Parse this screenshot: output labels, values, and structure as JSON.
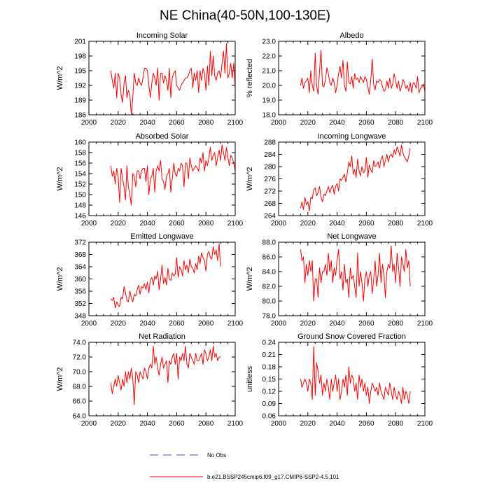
{
  "figure": {
    "title": "NE China(40-50N,100-130E)"
  },
  "colors": {
    "model_line": "#ff0000",
    "obs_line": "#4a4ad0",
    "axis": "#000000"
  },
  "legend": {
    "obs_label": "No Obs",
    "model_label": "b.e21.BSSP245cmip6.f09_g17.CMIP6-SSP2-4.5.101"
  },
  "chart_data": [
    {
      "type": "line",
      "title": "Incoming Solar",
      "ylabel": "W/m^2",
      "xlim": [
        2000,
        2100
      ],
      "ylim": [
        186,
        201
      ],
      "xticks": [
        2000,
        2020,
        2040,
        2060,
        2080,
        2100
      ],
      "xtick_labels": [
        "2000",
        "2020",
        "2040",
        "2060",
        "2080",
        "2100"
      ],
      "yticks": [
        186,
        189,
        192,
        195,
        198,
        201
      ],
      "ytick_labels": [
        "186",
        "189",
        "192",
        "195",
        "198",
        "201"
      ],
      "series": [
        {
          "name": "b.e21.BSSP245cmip6.f09_g17.CMIP6-SSP2-4.5.101",
          "x_start": 2015,
          "values": [
            195.0,
            193.0,
            191.5,
            194.5,
            189.5,
            194.5,
            193.5,
            190.0,
            188.5,
            192.5,
            194.0,
            189.5,
            191.0,
            190.0,
            186.0,
            189.5,
            194.5,
            192.5,
            192.0,
            193.5,
            192.5,
            192.0,
            193.5,
            195.5,
            195.5,
            195.0,
            192.0,
            189.5,
            192.5,
            194.5,
            193.5,
            192.0,
            195.5,
            189.0,
            194.5,
            194.5,
            192.5,
            194.0,
            193.0,
            191.0,
            195.5,
            189.5,
            193.5,
            194.5,
            195.0,
            192.0,
            191.5,
            191.0,
            192.0,
            192.5,
            193.0,
            193.5,
            193.5,
            194.0,
            195.0,
            195.5,
            191.5,
            194.5,
            193.0,
            195.0,
            190.5,
            195.0,
            193.0,
            195.5,
            194.5,
            191.0,
            196.0,
            192.0,
            199.0,
            194.0,
            198.0,
            194.0,
            193.0,
            194.5,
            195.0,
            193.5,
            196.5,
            199.0,
            194.5,
            200.5,
            193.5,
            194.5,
            196.5,
            193.5,
            196.5,
            191.5
          ]
        }
      ]
    },
    {
      "type": "line",
      "title": "Albedo",
      "ylabel": "% reflected",
      "xlim": [
        2000,
        2100
      ],
      "ylim": [
        18,
        23
      ],
      "xticks": [
        2000,
        2020,
        2040,
        2060,
        2080,
        2100
      ],
      "xtick_labels": [
        "2000",
        "2020",
        "2040",
        "2060",
        "2080",
        "2100"
      ],
      "yticks": [
        18,
        19,
        20,
        21,
        22,
        23
      ],
      "ytick_labels": [
        "18.0",
        "19.0",
        "20.0",
        "21.0",
        "22.0",
        "23.0"
      ],
      "series": [
        {
          "name": "b.e21.BSSP245cmip6.f09_g17.CMIP6-SSP2-4.5.101",
          "x_start": 2015,
          "values": [
            20.0,
            20.5,
            19.8,
            20.2,
            20.3,
            20.5,
            19.5,
            21.0,
            20.0,
            19.6,
            22.2,
            20.0,
            19.4,
            21.0,
            22.4,
            20.0,
            19.9,
            20.4,
            21.2,
            20.8,
            20.2,
            20.0,
            20.5,
            20.2,
            19.5,
            20.0,
            20.8,
            21.3,
            20.5,
            21.7,
            20.0,
            19.6,
            21.6,
            20.2,
            20.1,
            20.6,
            19.8,
            20.8,
            20.4,
            20.5,
            20.2,
            20.6,
            20.4,
            20.2,
            20.6,
            20.4,
            19.9,
            19.4,
            20.4,
            21.8,
            20.0,
            19.7,
            20.3,
            20.2,
            20.4,
            20.3,
            19.9,
            19.6,
            19.7,
            20.3,
            19.8,
            20.5,
            19.8,
            20.1,
            20.8,
            20.3,
            19.8,
            20.3,
            19.6,
            19.9,
            20.4,
            20.2,
            19.8,
            20.0,
            19.6,
            20.2,
            19.5,
            20.2,
            20.1,
            19.8,
            20.6,
            19.5,
            19.8,
            19.9,
            20.1,
            19.6
          ]
        }
      ]
    },
    {
      "type": "line",
      "title": "Absorbed Solar",
      "ylabel": "W/m^2",
      "xlim": [
        2000,
        2100
      ],
      "ylim": [
        146,
        160
      ],
      "xticks": [
        2000,
        2020,
        2040,
        2060,
        2080,
        2100
      ],
      "xtick_labels": [
        "2000",
        "2020",
        "2040",
        "2060",
        "2080",
        "2100"
      ],
      "yticks": [
        146,
        148,
        150,
        152,
        154,
        156,
        158,
        160
      ],
      "ytick_labels": [
        "146",
        "148",
        "150",
        "152",
        "154",
        "156",
        "158",
        "160"
      ],
      "series": [
        {
          "name": "b.e21.BSSP245cmip6.f09_g17.CMIP6-SSP2-4.5.101",
          "x_start": 2015,
          "values": [
            155.5,
            153.5,
            154.5,
            152.0,
            155.0,
            153.5,
            148.5,
            155.0,
            153.0,
            151.5,
            149.0,
            155.5,
            151.5,
            150.0,
            148.0,
            154.0,
            153.5,
            151.5,
            154.5,
            154.5,
            153.0,
            154.5,
            155.0,
            155.0,
            152.5,
            155.5,
            150.0,
            153.0,
            153.5,
            155.0,
            150.5,
            154.5,
            155.5,
            154.5,
            156.5,
            153.0,
            152.5,
            151.0,
            153.5,
            154.0,
            155.0,
            150.5,
            153.0,
            156.0,
            154.0,
            153.5,
            155.0,
            154.5,
            156.0,
            155.5,
            151.5,
            156.0,
            156.0,
            153.0,
            157.0,
            155.5,
            154.5,
            155.0,
            155.5,
            155.0,
            154.5,
            157.0,
            156.0,
            158.0,
            154.5,
            156.5,
            155.5,
            157.0,
            159.0,
            156.5,
            157.5,
            158.0,
            155.5,
            157.0,
            158.5,
            156.5,
            159.5,
            158.0,
            156.5,
            159.0,
            157.0,
            155.5,
            157.5,
            157.0,
            156.0,
            154.5
          ]
        }
      ]
    },
    {
      "type": "line",
      "title": "Incoming Longwave",
      "ylabel": "W/m^2",
      "xlim": [
        2000,
        2100
      ],
      "ylim": [
        264,
        288
      ],
      "xticks": [
        2000,
        2020,
        2040,
        2060,
        2080,
        2100
      ],
      "xtick_labels": [
        "2000",
        "2020",
        "2040",
        "2060",
        "2080",
        "2100"
      ],
      "yticks": [
        264,
        268,
        272,
        276,
        280,
        284,
        288
      ],
      "ytick_labels": [
        "264",
        "268",
        "272",
        "276",
        "280",
        "284",
        "288"
      ],
      "series": [
        {
          "name": "b.e21.BSSP245cmip6.f09_g17.CMIP6-SSP2-4.5.101",
          "x_start": 2015,
          "values": [
            266.5,
            268.5,
            266.0,
            270.0,
            267.5,
            268.5,
            265.5,
            270.0,
            269.5,
            272.5,
            273.0,
            270.5,
            271.5,
            273.5,
            270.0,
            268.5,
            271.0,
            270.5,
            272.0,
            273.5,
            271.5,
            273.0,
            274.0,
            271.0,
            273.5,
            274.5,
            272.0,
            276.0,
            275.5,
            276.5,
            277.5,
            275.0,
            278.0,
            281.5,
            280.0,
            283.5,
            277.5,
            279.0,
            276.5,
            282.5,
            278.5,
            277.0,
            280.0,
            278.0,
            278.5,
            283.0,
            276.5,
            280.5,
            279.0,
            278.0,
            282.0,
            280.0,
            280.5,
            281.5,
            279.5,
            282.5,
            283.5,
            280.0,
            282.0,
            284.0,
            281.5,
            283.5,
            284.0,
            283.0,
            285.5,
            284.0,
            286.5,
            285.0,
            283.5,
            287.0,
            284.5,
            283.0,
            282.5,
            281.5,
            283.5,
            286.0
          ]
        }
      ]
    },
    {
      "type": "line",
      "title": "Emitted Longwave",
      "ylabel": "W/m^2",
      "xlim": [
        2000,
        2100
      ],
      "ylim": [
        348,
        372
      ],
      "xticks": [
        2000,
        2020,
        2040,
        2060,
        2080,
        2100
      ],
      "xtick_labels": [
        "2000",
        "2020",
        "2040",
        "2060",
        "2080",
        "2100"
      ],
      "yticks": [
        348,
        352,
        356,
        360,
        364,
        368,
        372
      ],
      "ytick_labels": [
        "348",
        "352",
        "356",
        "360",
        "364",
        "368",
        "372"
      ],
      "series": [
        {
          "name": "b.e21.BSSP245cmip6.f09_g17.CMIP6-SSP2-4.5.101",
          "x_start": 2015,
          "values": [
            353.5,
            353.0,
            354.0,
            350.5,
            352.5,
            351.5,
            351.0,
            354.0,
            353.5,
            357.5,
            355.5,
            353.0,
            352.5,
            356.0,
            354.0,
            352.5,
            355.0,
            354.5,
            356.5,
            358.0,
            355.0,
            357.5,
            357.0,
            358.5,
            356.5,
            359.0,
            355.5,
            359.5,
            360.5,
            358.0,
            361.0,
            360.0,
            362.5,
            356.5,
            360.0,
            364.5,
            358.5,
            360.5,
            358.0,
            363.5,
            360.0,
            359.5,
            362.0,
            361.0,
            361.5,
            367.0,
            360.5,
            364.0,
            363.0,
            361.0,
            366.0,
            363.0,
            364.5,
            362.0,
            366.5,
            364.0,
            363.5,
            362.0,
            365.0,
            363.0,
            367.5,
            365.0,
            368.5,
            367.0,
            366.0,
            362.5,
            368.0,
            369.0,
            367.0,
            366.5,
            370.5,
            368.0,
            369.5,
            366.0,
            371.5,
            364.0
          ]
        }
      ]
    },
    {
      "type": "line",
      "title": "Net Longwave",
      "ylabel": "W/m^2",
      "xlim": [
        2000,
        2100
      ],
      "ylim": [
        78,
        88
      ],
      "xticks": [
        2000,
        2020,
        2040,
        2060,
        2080,
        2100
      ],
      "xtick_labels": [
        "2000",
        "2020",
        "2040",
        "2060",
        "2080",
        "2100"
      ],
      "yticks": [
        78,
        80,
        82,
        84,
        86,
        88
      ],
      "ytick_labels": [
        "78.0",
        "80.0",
        "82.0",
        "84.0",
        "86.0",
        "88.0"
      ],
      "series": [
        {
          "name": "b.e21.BSSP245cmip6.f09_g17.CMIP6-SSP2-4.5.101",
          "x_start": 2015,
          "values": [
            87.0,
            85.5,
            86.0,
            82.5,
            85.0,
            83.5,
            85.5,
            84.0,
            85.5,
            80.0,
            83.0,
            83.0,
            80.5,
            84.5,
            82.5,
            84.0,
            84.0,
            85.0,
            83.5,
            86.5,
            84.0,
            85.5,
            82.5,
            84.5,
            83.5,
            85.5,
            87.0,
            83.0,
            84.0,
            81.5,
            85.0,
            82.5,
            83.0,
            80.5,
            84.5,
            83.0,
            83.5,
            82.0,
            80.5,
            86.5,
            82.0,
            84.0,
            82.5,
            80.0,
            83.0,
            84.0,
            82.0,
            83.5,
            84.0,
            81.0,
            83.0,
            85.5,
            82.0,
            83.5,
            86.5,
            82.5,
            85.0,
            83.5,
            80.5,
            84.0,
            85.0,
            84.5,
            87.5,
            84.0,
            85.0,
            82.5,
            86.5,
            84.5,
            82.0,
            86.0,
            85.0,
            84.0,
            87.0,
            84.5,
            85.5,
            82.0
          ]
        }
      ]
    },
    {
      "type": "line",
      "title": "Net Radiation",
      "ylabel": "W/m^2",
      "xlim": [
        2000,
        2100
      ],
      "ylim": [
        64,
        74
      ],
      "xticks": [
        2000,
        2020,
        2040,
        2060,
        2080,
        2100
      ],
      "xtick_labels": [
        "2000",
        "2020",
        "2040",
        "2060",
        "2080",
        "2100"
      ],
      "yticks": [
        64,
        66,
        68,
        70,
        72,
        74
      ],
      "ytick_labels": [
        "64.0",
        "66.0",
        "68.0",
        "70.0",
        "72.0",
        "74.0"
      ],
      "series": [
        {
          "name": "b.e21.BSSP245cmip6.f09_g17.CMIP6-SSP2-4.5.101",
          "x_start": 2015,
          "values": [
            68.5,
            67.0,
            68.0,
            69.0,
            68.0,
            69.5,
            68.5,
            67.5,
            69.0,
            68.0,
            70.0,
            68.5,
            70.0,
            69.0,
            70.5,
            69.0,
            65.5,
            70.0,
            69.5,
            68.5,
            70.0,
            69.5,
            69.0,
            70.5,
            70.0,
            69.0,
            70.5,
            71.0,
            70.5,
            73.5,
            71.0,
            72.0,
            70.5,
            69.5,
            71.0,
            72.0,
            70.5,
            71.0,
            71.5,
            68.5,
            71.5,
            71.0,
            72.0,
            72.5,
            71.0,
            72.5,
            69.0,
            72.0,
            71.5,
            72.5,
            71.5,
            73.5,
            71.0,
            70.5,
            72.5,
            72.0,
            71.5,
            71.0,
            72.5,
            71.5,
            71.5,
            72.0,
            72.5,
            71.0,
            73.0,
            72.5,
            71.5,
            72.0,
            73.0,
            71.5,
            73.5,
            72.0,
            72.5,
            71.5,
            72.0,
            72.0
          ]
        }
      ]
    },
    {
      "type": "line",
      "title": "Ground Snow Covered Fraction",
      "ylabel": "unitless",
      "xlim": [
        2000,
        2100
      ],
      "ylim": [
        0.06,
        0.24
      ],
      "xticks": [
        2000,
        2020,
        2040,
        2060,
        2080,
        2100
      ],
      "xtick_labels": [
        "2000",
        "2020",
        "2040",
        "2060",
        "2080",
        "2100"
      ],
      "yticks": [
        0.06,
        0.09,
        0.12,
        0.15,
        0.18,
        0.21,
        0.24
      ],
      "ytick_labels": [
        "0.06",
        "0.09",
        "0.12",
        "0.15",
        "0.18",
        "0.21",
        "0.24"
      ],
      "series": [
        {
          "name": "b.e21.BSSP245cmip6.f09_g17.CMIP6-SSP2-4.5.101",
          "x_start": 2015,
          "values": [
            0.15,
            0.13,
            0.14,
            0.15,
            0.14,
            0.12,
            0.15,
            0.14,
            0.1,
            0.23,
            0.11,
            0.19,
            0.17,
            0.14,
            0.16,
            0.11,
            0.14,
            0.12,
            0.15,
            0.13,
            0.1,
            0.15,
            0.12,
            0.14,
            0.16,
            0.12,
            0.15,
            0.1,
            0.12,
            0.15,
            0.13,
            0.16,
            0.11,
            0.18,
            0.14,
            0.16,
            0.15,
            0.12,
            0.14,
            0.1,
            0.16,
            0.13,
            0.15,
            0.12,
            0.14,
            0.11,
            0.13,
            0.09,
            0.12,
            0.14,
            0.13,
            0.12,
            0.13,
            0.11,
            0.14,
            0.12,
            0.11,
            0.1,
            0.13,
            0.12,
            0.11,
            0.14,
            0.12,
            0.1,
            0.13,
            0.11,
            0.1,
            0.12,
            0.11,
            0.09,
            0.13,
            0.1,
            0.12,
            0.11,
            0.09,
            0.12
          ]
        }
      ]
    }
  ]
}
